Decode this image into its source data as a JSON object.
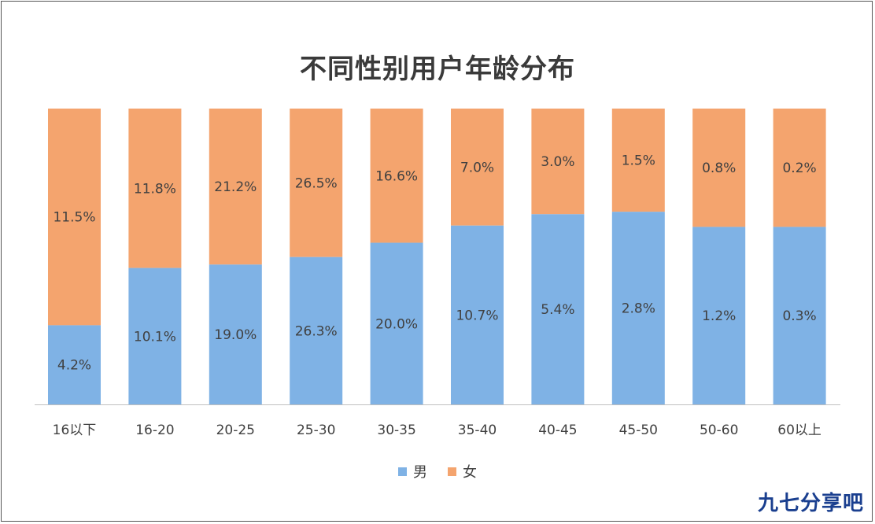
{
  "chart_data": {
    "type": "bar",
    "stacked": true,
    "normalized_100": true,
    "title": "不同性别用户年龄分布",
    "xlabel": "",
    "ylabel": "",
    "categories": [
      "16以下",
      "16-20",
      "20-25",
      "25-30",
      "30-35",
      "35-40",
      "40-45",
      "45-50",
      "50-60",
      "60以上"
    ],
    "series": [
      {
        "name": "男",
        "color": "#7fb2e5",
        "values": [
          4.2,
          10.1,
          19.0,
          26.3,
          20.0,
          10.7,
          5.4,
          2.8,
          1.2,
          0.3
        ],
        "labels": [
          "4.2%",
          "10.1%",
          "19.0%",
          "26.3%",
          "20.0%",
          "10.7%",
          "5.4%",
          "2.8%",
          "1.2%",
          "0.3%"
        ]
      },
      {
        "name": "女",
        "color": "#f4a46e",
        "values": [
          11.5,
          11.8,
          21.2,
          26.5,
          16.6,
          7.0,
          3.0,
          1.5,
          0.8,
          0.2
        ],
        "labels": [
          "11.5%",
          "11.8%",
          "21.2%",
          "26.5%",
          "16.6%",
          "7.0%",
          "3.0%",
          "1.5%",
          "0.8%",
          "0.2%"
        ]
      }
    ],
    "legend_position": "bottom",
    "grid": false
  },
  "watermark": "九七分享吧"
}
